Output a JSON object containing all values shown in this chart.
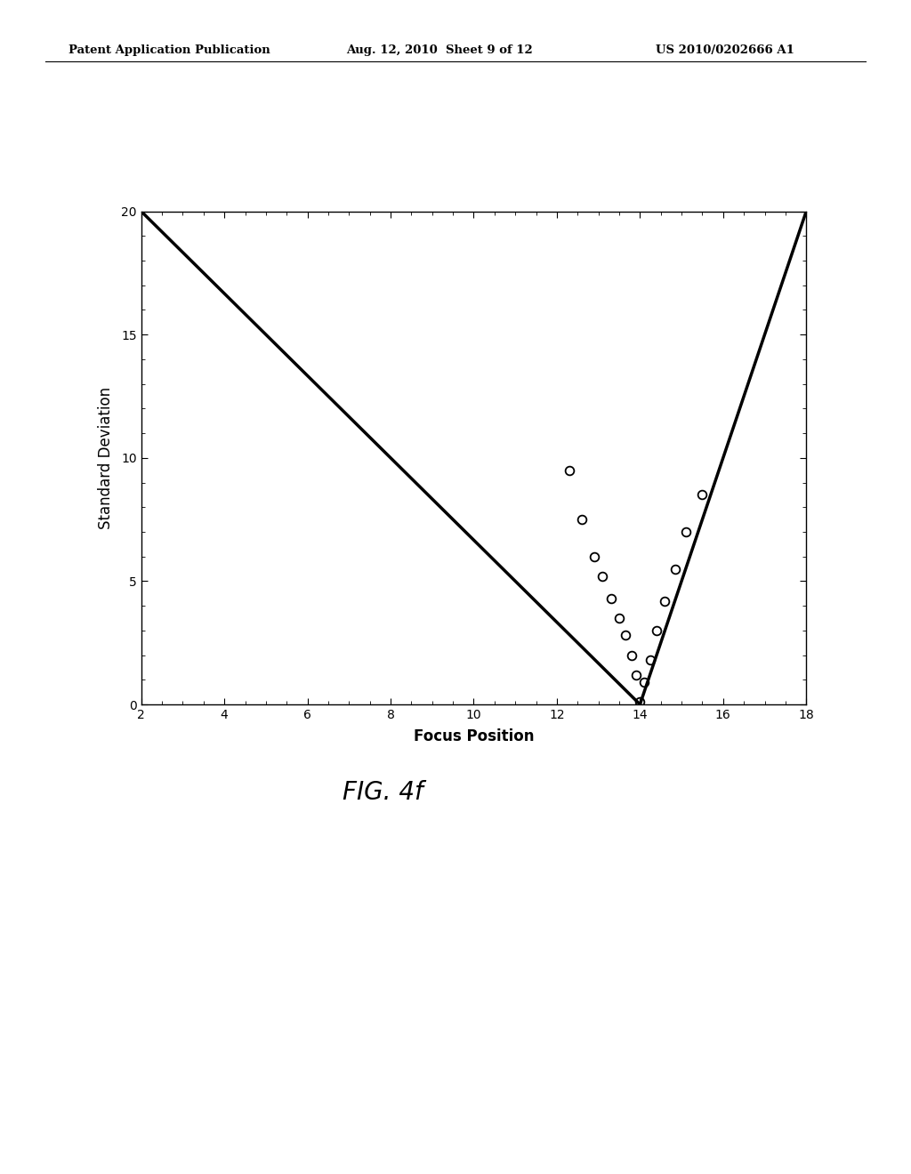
{
  "header_left": "Patent Application Publication",
  "header_mid": "Aug. 12, 2010  Sheet 9 of 12",
  "header_right": "US 2010/0202666 A1",
  "caption": "FIG. 4f",
  "xlabel": "Focus Position",
  "ylabel": "Standard Deviation",
  "xlim": [
    2,
    18
  ],
  "ylim": [
    0,
    20
  ],
  "xticks": [
    2,
    4,
    6,
    8,
    10,
    12,
    14,
    16,
    18
  ],
  "yticks": [
    0,
    5,
    10,
    15,
    20
  ],
  "line_color": "#000000",
  "line_width": 2.5,
  "marker_color": "#000000",
  "marker_size": 7,
  "line1_x": [
    2.0,
    14.0
  ],
  "line1_y": [
    20.0,
    0.0
  ],
  "line2_x": [
    14.0,
    18.0
  ],
  "line2_y": [
    0.0,
    20.0
  ],
  "data_points_x": [
    12.3,
    12.6,
    12.9,
    13.1,
    13.3,
    13.5,
    13.65,
    13.8,
    13.9,
    14.0,
    14.1,
    14.25,
    14.4,
    14.6,
    14.85,
    15.1,
    15.5
  ],
  "data_points_y": [
    9.5,
    7.5,
    6.0,
    5.2,
    4.3,
    3.5,
    2.8,
    2.0,
    1.2,
    0.1,
    0.9,
    1.8,
    3.0,
    4.2,
    5.5,
    7.0,
    8.5
  ],
  "background_color": "#ffffff",
  "axis_label_fontsize": 12,
  "tick_fontsize": 10,
  "header_fontsize": 9.5
}
